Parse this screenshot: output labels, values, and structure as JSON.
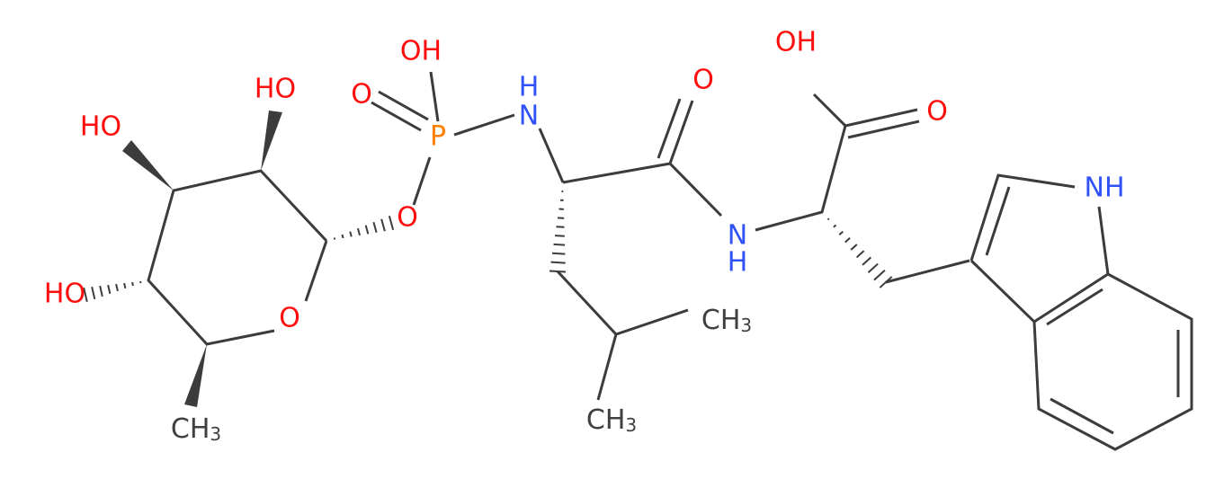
{
  "atoms": [
    {
      "label": "HO"
    },
    {
      "label": "HO"
    },
    {
      "label": "HO"
    },
    {
      "label": "O"
    },
    {
      "label": "CH",
      "sub": "3"
    },
    {
      "label": "O"
    },
    {
      "label": "P"
    },
    {
      "label": "O"
    },
    {
      "label": "OH"
    },
    {
      "label": "N"
    },
    {
      "label": "H"
    },
    {
      "label": "O"
    },
    {
      "label": "N"
    },
    {
      "label": "H"
    },
    {
      "label": "CH",
      "sub": "3"
    },
    {
      "label": "CH",
      "sub": "3"
    },
    {
      "label": "OH"
    },
    {
      "label": "O"
    },
    {
      "label": "NH"
    }
  ]
}
